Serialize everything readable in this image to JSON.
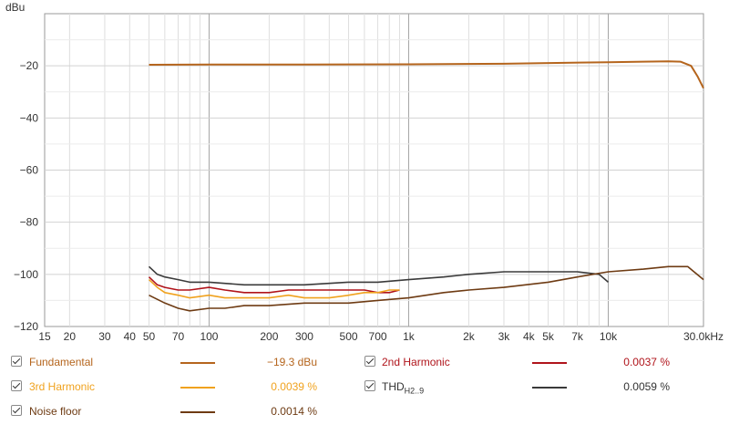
{
  "chart_data": {
    "type": "line",
    "title": "",
    "ylabel": "dBu",
    "xlabel": "",
    "x_scale": "log",
    "xlim": [
      15,
      30000
    ],
    "ylim": [
      -120,
      0
    ],
    "grid": true,
    "x_ticks": [
      {
        "v": 15,
        "t": "15"
      },
      {
        "v": 20,
        "t": "20"
      },
      {
        "v": 30,
        "t": "30"
      },
      {
        "v": 40,
        "t": "40"
      },
      {
        "v": 50,
        "t": "50"
      },
      {
        "v": 70,
        "t": "70"
      },
      {
        "v": 100,
        "t": "100"
      },
      {
        "v": 200,
        "t": "200"
      },
      {
        "v": 300,
        "t": "300"
      },
      {
        "v": 500,
        "t": "500"
      },
      {
        "v": 700,
        "t": "700"
      },
      {
        "v": 1000,
        "t": "1k"
      },
      {
        "v": 2000,
        "t": "2k"
      },
      {
        "v": 3000,
        "t": "3k"
      },
      {
        "v": 4000,
        "t": "4k"
      },
      {
        "v": 5000,
        "t": "5k"
      },
      {
        "v": 7000,
        "t": "7k"
      },
      {
        "v": 10000,
        "t": "10k"
      },
      {
        "v": 30000,
        "t": "30.0kHz"
      }
    ],
    "y_ticks": [
      {
        "v": -20,
        "t": "−20"
      },
      {
        "v": -40,
        "t": "−40"
      },
      {
        "v": -60,
        "t": "−60"
      },
      {
        "v": -80,
        "t": "−80"
      },
      {
        "v": -100,
        "t": "−100"
      },
      {
        "v": -120,
        "t": "−120"
      }
    ],
    "series": [
      {
        "name": "Fundamental",
        "color": "#b5651d",
        "value_text": "−19.3 dBu",
        "x": [
          50,
          100,
          300,
          1000,
          3000,
          10000,
          15000,
          20000,
          23000,
          26000,
          28000,
          30000
        ],
        "y": [
          -19.6,
          -19.5,
          -19.5,
          -19.4,
          -19.2,
          -18.6,
          -18.4,
          -18.3,
          -18.4,
          -20.0,
          -24.0,
          -28.6
        ]
      },
      {
        "name": "2nd Harmonic",
        "color": "#b0141b",
        "value_text": "0.0037 %",
        "x": [
          50,
          55,
          60,
          70,
          80,
          100,
          120,
          150,
          200,
          250,
          300,
          400,
          500,
          600,
          700,
          800,
          900
        ],
        "y": [
          -101,
          -104,
          -105,
          -106,
          -106,
          -105,
          -106,
          -107,
          -107,
          -106,
          -106,
          -106,
          -106,
          -106,
          -107,
          -107,
          -106
        ]
      },
      {
        "name": "3rd Harmonic",
        "color": "#f0a21e",
        "value_text": "0.0039 %",
        "x": [
          50,
          55,
          60,
          70,
          80,
          100,
          120,
          150,
          200,
          250,
          300,
          400,
          500,
          600,
          700,
          800,
          900
        ],
        "y": [
          -102,
          -105,
          -107,
          -108,
          -109,
          -108,
          -109,
          -109,
          -109,
          -108,
          -109,
          -109,
          -108,
          -107,
          -107,
          -106,
          -106
        ]
      },
      {
        "name": "THD",
        "name_sub": "H2..9",
        "color": "#3a3a3a",
        "value_text": "0.0059 %",
        "x": [
          50,
          55,
          60,
          70,
          80,
          100,
          150,
          200,
          300,
          500,
          700,
          1000,
          1500,
          2000,
          3000,
          5000,
          7000,
          9000,
          10000
        ],
        "y": [
          -97,
          -100,
          -101,
          -102,
          -103,
          -103,
          -104,
          -104,
          -104,
          -103,
          -103,
          -102,
          -101,
          -100,
          -99,
          -99,
          -99,
          -100,
          -103
        ]
      },
      {
        "name": "Noise floor",
        "color": "#6e3b13",
        "value_text": "0.0014 %",
        "x": [
          50,
          60,
          70,
          80,
          100,
          120,
          150,
          200,
          300,
          500,
          700,
          1000,
          1500,
          2000,
          3000,
          5000,
          7000,
          10000,
          15000,
          20000,
          25000,
          30000
        ],
        "y": [
          -108,
          -111,
          -113,
          -114,
          -113,
          -113,
          -112,
          -112,
          -111,
          -111,
          -110,
          -109,
          -107,
          -106,
          -105,
          -103,
          -101,
          -99,
          -98,
          -97,
          -97,
          -102
        ]
      }
    ]
  },
  "legend": [
    {
      "label": "Fundamental",
      "value": "−19.3 dBu",
      "label_color": "#b5651d",
      "swatch_color": "#b5651d"
    },
    {
      "label": "2nd Harmonic",
      "value": "0.0037 %",
      "label_color": "#b0141b",
      "swatch_color": "#b0141b"
    },
    {
      "label": "3rd Harmonic",
      "value": "0.0039 %",
      "label_color": "#f0a21e",
      "swatch_color": "#f0a21e"
    },
    {
      "label": "THD",
      "label_sub": "H2..9",
      "value": "0.0059 %",
      "label_color": "#333333",
      "swatch_color": "#3a3a3a"
    },
    {
      "label": "Noise floor",
      "value": "0.0014 %",
      "label_color": "#6e3b13",
      "swatch_color": "#6e3b13"
    }
  ]
}
